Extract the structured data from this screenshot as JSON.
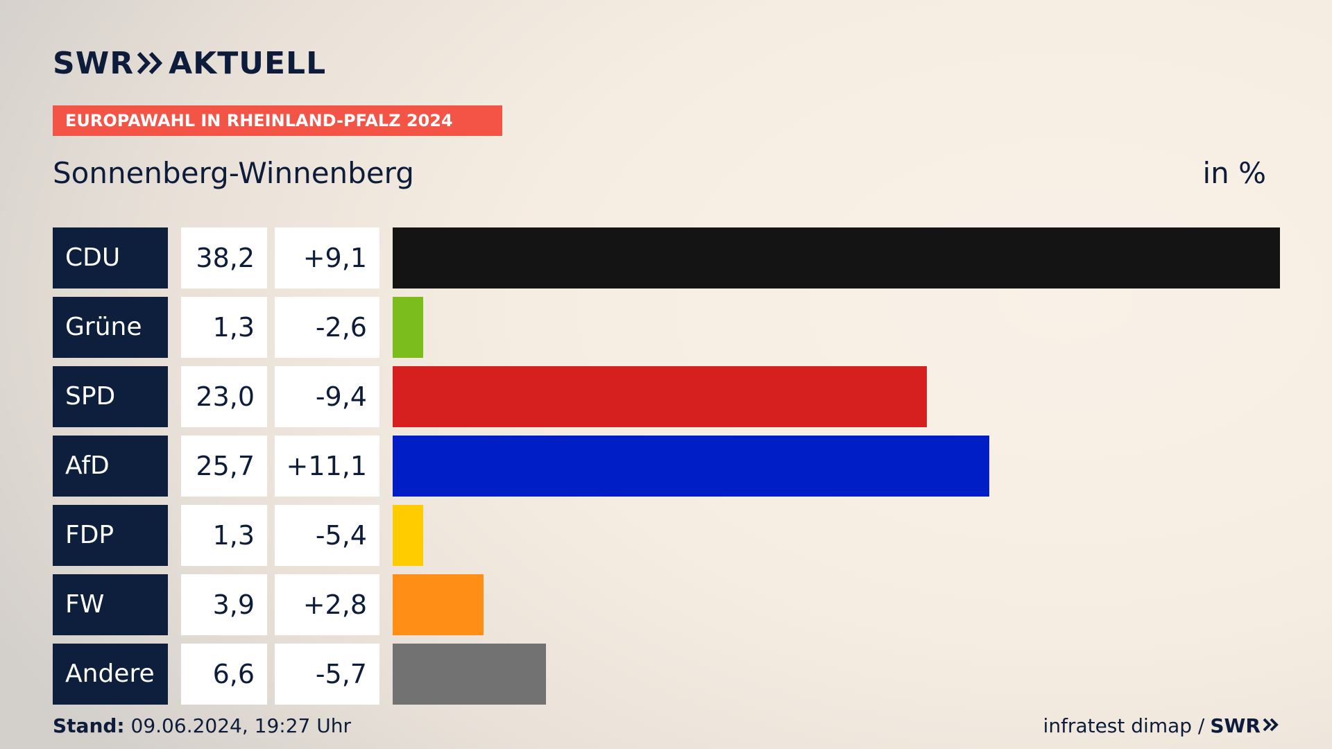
{
  "brand": {
    "logo_text_left": "SWR",
    "logo_text_right": "AKTUELL"
  },
  "badge": "EUROPAWAHL IN RHEINLAND-PFALZ 2024",
  "title": "Sonnenberg-Winnenberg",
  "unit": "in %",
  "footer": {
    "stand_label": "Stand:",
    "stand_value": "09.06.2024, 19:27 Uhr",
    "source": "infratest dimap /",
    "source_brand": "SWR"
  },
  "chart_data": {
    "type": "bar",
    "orientation": "horizontal",
    "categories": [
      "CDU",
      "Grüne",
      "SPD",
      "AfD",
      "FDP",
      "FW",
      "Andere"
    ],
    "values": [
      38.2,
      1.3,
      23.0,
      25.7,
      1.3,
      3.9,
      6.6
    ],
    "value_labels": [
      "38,2",
      "1,3",
      "23,0",
      "25,7",
      "1,3",
      "3,9",
      "6,6"
    ],
    "diff_labels": [
      "+9,1",
      "-2,6",
      "-9,4",
      "+11,1",
      "-5,4",
      "+2,8",
      "-5,7"
    ],
    "diffs": [
      9.1,
      -2.6,
      -9.4,
      11.1,
      -5.4,
      2.8,
      -5.7
    ],
    "colors": [
      "#141414",
      "#7bbd1d",
      "#d61f1f",
      "#001ec6",
      "#ffcc00",
      "#ff8e16",
      "#727272"
    ],
    "xlim": [
      0,
      38.2
    ],
    "grid": false,
    "legend": "none"
  }
}
